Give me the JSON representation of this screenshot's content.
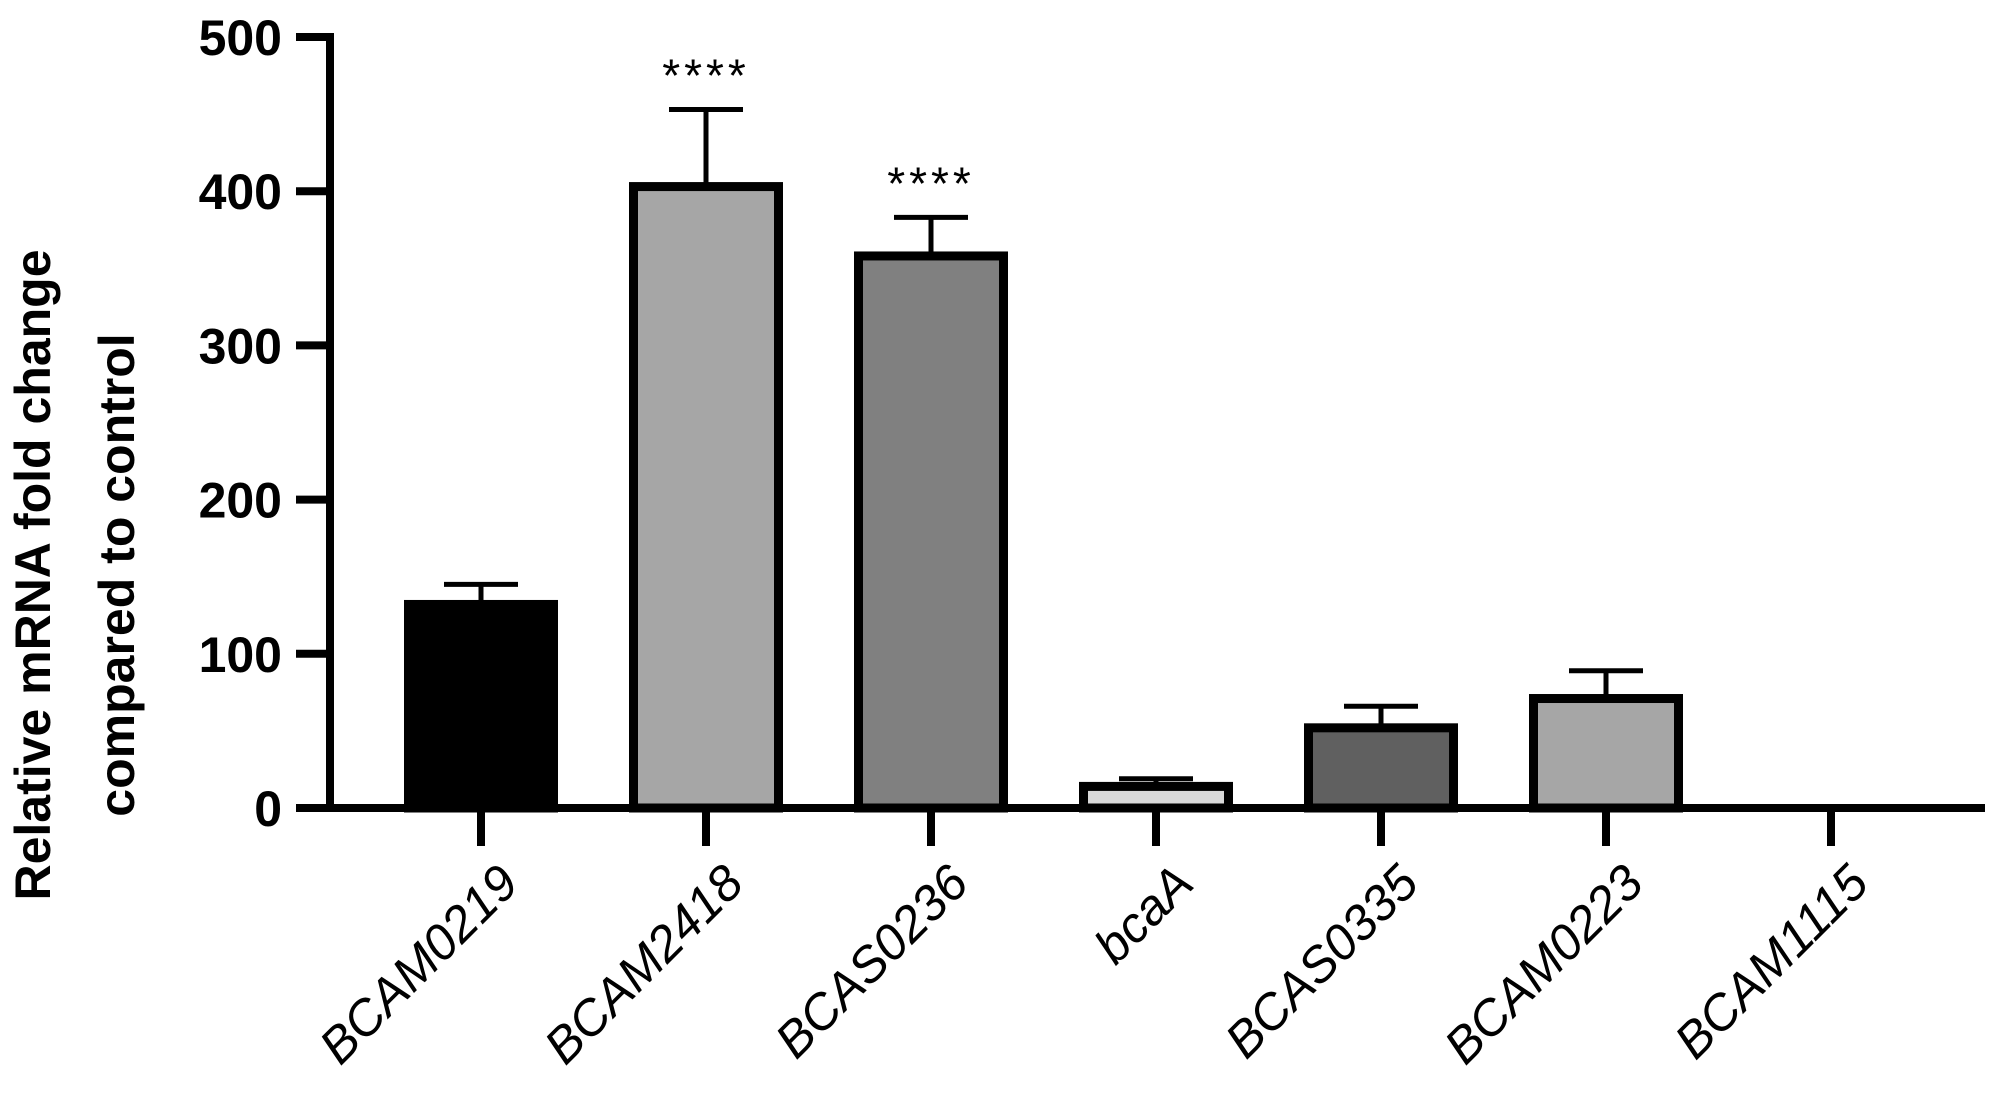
{
  "chart_data": {
    "type": "bar",
    "title": "",
    "xlabel": "",
    "ylabel_lines": [
      "Relative mRNA fold change",
      "compared to control"
    ],
    "ylim": [
      0,
      500
    ],
    "yticks": [
      "0",
      "100",
      "200",
      "300",
      "400",
      "500"
    ],
    "categories": [
      "BCAM0219",
      "BCAM2418",
      "BCAS0236",
      "bcaA",
      "BCAS0335",
      "BCAM0223",
      "BCAM1115"
    ],
    "values": [
      132,
      403,
      358,
      14,
      52,
      71,
      0
    ],
    "errors": [
      13,
      50,
      25,
      5,
      14,
      18,
      0
    ],
    "significance": [
      "",
      "****",
      "****",
      "",
      "",
      "",
      ""
    ],
    "colors": [
      "#000000",
      "#a6a6a6",
      "#808080",
      "#d9d9d9",
      "#606060",
      "#a6a6a6",
      "#ffffff"
    ],
    "grid": false
  }
}
